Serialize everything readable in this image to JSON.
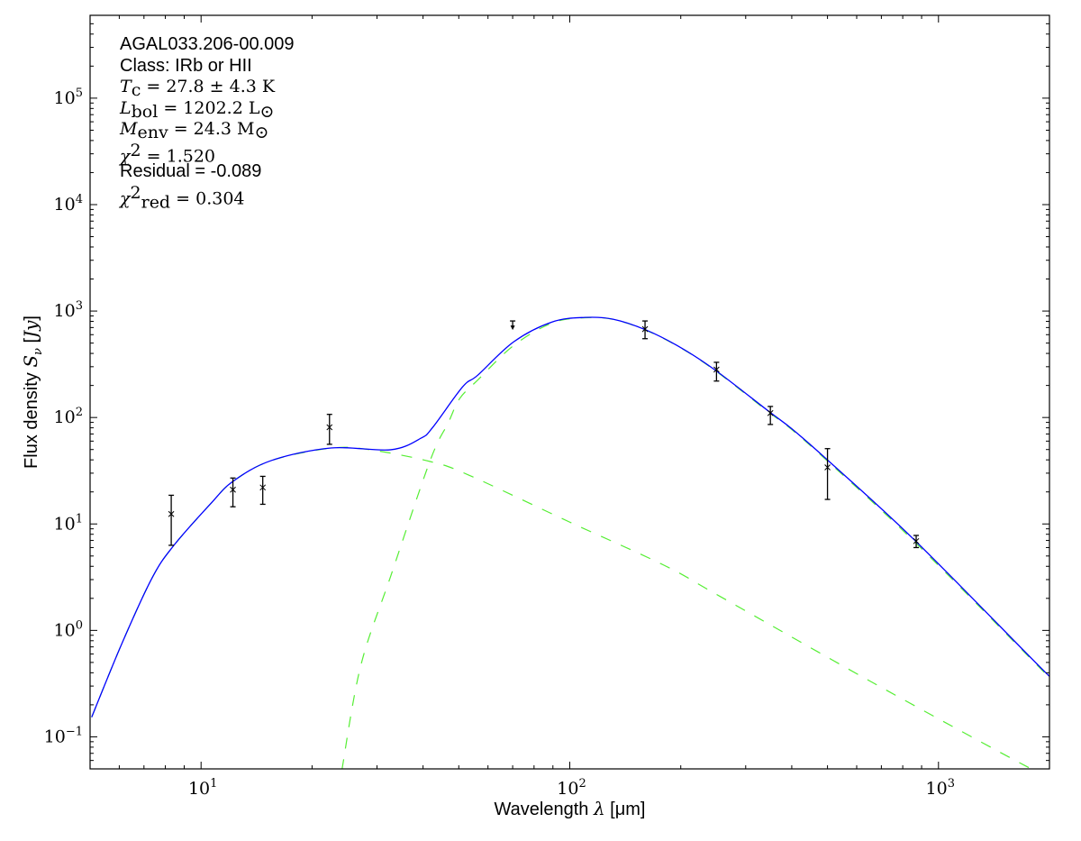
{
  "chart_data": {
    "type": "scatter",
    "title": "",
    "xlabel": {
      "prefix": "Wavelength ",
      "symbol": "λ",
      "suffix": " [μm]"
    },
    "ylabel": {
      "prefix": "Flux density ",
      "symbol": "S",
      "sub": "ν",
      "open": " [",
      "unit": "Jy",
      "close": "]"
    },
    "xscale": "log",
    "yscale": "log",
    "xlim": [
      5,
      2000
    ],
    "ylim": [
      0.05,
      600000
    ],
    "grid": false,
    "x_ticks": [
      {
        "value": 10,
        "base": "10",
        "exp": "1"
      },
      {
        "value": 100,
        "base": "10",
        "exp": "2"
      },
      {
        "value": 1000,
        "base": "10",
        "exp": "3"
      }
    ],
    "y_ticks": [
      {
        "value": 0.1,
        "base": "10",
        "exp": "−1"
      },
      {
        "value": 1,
        "base": "10",
        "exp": "0"
      },
      {
        "value": 10,
        "base": "10",
        "exp": "1"
      },
      {
        "value": 100,
        "base": "10",
        "exp": "2"
      },
      {
        "value": 1000,
        "base": "10",
        "exp": "3"
      },
      {
        "value": 10000,
        "base": "10",
        "exp": "4"
      },
      {
        "value": 100000,
        "base": "10",
        "exp": "5"
      }
    ],
    "points": [
      {
        "x": 8.3,
        "y": 12.4,
        "err_low": 6.3,
        "err_high": 18.6
      },
      {
        "x": 12.2,
        "y": 21,
        "err_low": 14.5,
        "err_high": 27
      },
      {
        "x": 14.7,
        "y": 22,
        "err_low": 15.3,
        "err_high": 28
      },
      {
        "x": 22.3,
        "y": 81,
        "err_low": 56,
        "err_high": 107
      },
      {
        "x": 160,
        "y": 676,
        "err_low": 550,
        "err_high": 807
      },
      {
        "x": 250,
        "y": 282,
        "err_low": 220,
        "err_high": 330
      },
      {
        "x": 350,
        "y": 110,
        "err_low": 86,
        "err_high": 127
      },
      {
        "x": 500,
        "y": 34,
        "err_low": 17,
        "err_high": 51
      },
      {
        "x": 870,
        "y": 6.9,
        "err_low": 6.0,
        "err_high": 7.8
      }
    ],
    "upper_limits": [
      {
        "x": 70,
        "y": 807
      }
    ],
    "point_color": "#000000",
    "series": [
      {
        "role": "total-model",
        "color": "#0000ff",
        "style": "solid",
        "x": [
          5.05,
          6.07,
          7.35,
          8.41,
          10.6,
          12.2,
          15.5,
          22.5,
          32.7,
          39.5,
          42.5,
          51.2,
          56.3,
          70.5,
          89.7,
          110,
          131,
          161,
          201,
          249,
          348,
          401,
          496,
          865,
          1950,
          2000
        ],
        "y": [
          0.153,
          0.725,
          3.07,
          6.2,
          15.4,
          25.1,
          39.4,
          51.7,
          49.8,
          64,
          80.9,
          194,
          250,
          515,
          791,
          871,
          839,
          664,
          449,
          276,
          113,
          77.8,
          40.9,
          6.95,
          0.403,
          0.394
        ]
      },
      {
        "role": "cold-component",
        "color": "#55ee33",
        "style": "dashed",
        "x": [
          24.1,
          27.1,
          32.7,
          41.8,
          46.8,
          50.3,
          56.3,
          70.5,
          89.7,
          110,
          131,
          161,
          201,
          249,
          348,
          401,
          496,
          865,
          2000
        ],
        "y": [
          0.049,
          0.464,
          3.25,
          39.3,
          89,
          151,
          225,
          476,
          775,
          865,
          835,
          660,
          446,
          273,
          111,
          76.5,
          40,
          6.7,
          0.36
        ]
      },
      {
        "role": "warm-component",
        "color": "#55ee33",
        "style": "dashed",
        "x": [
          5.05,
          6.07,
          7.35,
          8.41,
          10.6,
          12.2,
          15.5,
          22.5,
          28.7,
          41.8,
          53.2,
          100,
          180,
          256,
          653,
          1704,
          2000
        ],
        "y": [
          0.153,
          0.725,
          3.07,
          6.2,
          15.4,
          25.1,
          39.4,
          51.5,
          49.8,
          38.6,
          28.8,
          10.4,
          4.1,
          2.08,
          0.333,
          0.0544,
          0.043
        ]
      }
    ],
    "annotations": [
      [
        {
          "t": "AGAL033.206-00.009",
          "k": "sans"
        }
      ],
      [
        {
          "t": "Class: IRb or HII",
          "k": "sans"
        }
      ],
      [
        {
          "t": "T",
          "k": "it"
        },
        {
          "t": "c",
          "k": "sub"
        },
        {
          "t": " = 27.8 ± 4.3 K",
          "k": "math"
        }
      ],
      [
        {
          "t": "L",
          "k": "it"
        },
        {
          "t": "bol",
          "k": "sub"
        },
        {
          "t": " = 1202.2 L",
          "k": "math"
        },
        {
          "t": "⊙",
          "k": "sub"
        }
      ],
      [
        {
          "t": "M",
          "k": "it"
        },
        {
          "t": "env",
          "k": "sub"
        },
        {
          "t": " = 24.3 M",
          "k": "math"
        },
        {
          "t": "⊙",
          "k": "sub"
        }
      ],
      [
        {
          "t": "χ",
          "k": "it"
        },
        {
          "t": "2",
          "k": "sup"
        },
        {
          "t": " = 1.520",
          "k": "math"
        }
      ],
      [
        {
          "t": "Residual = -0.089",
          "k": "sans"
        }
      ],
      [
        {
          "t": "χ",
          "k": "it"
        },
        {
          "t": "2",
          "k": "sup"
        },
        {
          "t": "red",
          "k": "sub"
        },
        {
          "t": " = 0.304",
          "k": "math"
        }
      ]
    ]
  }
}
